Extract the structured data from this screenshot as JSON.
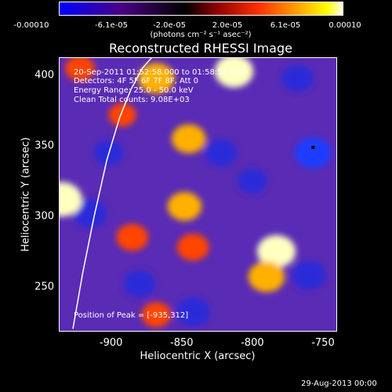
{
  "colorbar": {
    "tick_labels": [
      "-0.00010",
      "-6.1e-05",
      "-2.0e-05",
      "2.0e-05",
      "6.1e-05",
      "0.00010"
    ],
    "units_label": "(photons cm⁻² s⁻¹ asec⁻²)",
    "range": [
      -0.0001,
      0.0001
    ],
    "colors": [
      "#0000ff",
      "#4b0082",
      "#000000",
      "#8b0000",
      "#ff0000",
      "#ffa500",
      "#ffff00",
      "#ffffff"
    ]
  },
  "annotations": {
    "time_range": "20-Sep-2011 01:52:58.000 to 01:58:58.000",
    "detectors": "Detectors: 4F 5F 6F 7F 8F, Att 0",
    "energy": "Energy Range: 25.0 - 50.0 keV",
    "clean": "Clean     Total counts: 9.08E+03",
    "peak": "Position of Peak = [-935,312]"
  },
  "footer": {
    "date_stamp": "29-Aug-2013 00:00"
  },
  "chart_data": {
    "type": "heatmap",
    "title": "Reconstructed RHESSI Image",
    "xlabel": "Heliocentric X (arcsec)",
    "ylabel": "Heliocentric Y (arcsec)",
    "xlim": [
      -937,
      -740
    ],
    "ylim": [
      218,
      413
    ],
    "x_ticks": [
      -900,
      -850,
      -800,
      -750
    ],
    "y_ticks": [
      250,
      300,
      350,
      400
    ],
    "x_tick_labels": [
      "-900",
      "-850",
      "-800",
      "-750"
    ],
    "y_tick_labels": [
      "250",
      "300",
      "350",
      "400"
    ],
    "peak_position": [
      -935,
      312
    ],
    "limb_curve": {
      "x": [
        -927,
        -920,
        -912,
        -903,
        -894,
        -886,
        -878,
        -871
      ],
      "y": [
        220,
        260,
        300,
        340,
        370,
        390,
        405,
        413
      ]
    },
    "bright_sources": [
      {
        "x": -935,
        "y": 312,
        "value": 0.0001
      },
      {
        "x": -868,
        "y": 398,
        "value": 8e-05
      },
      {
        "x": -813,
        "y": 403,
        "value": 9e-05
      },
      {
        "x": -845,
        "y": 355,
        "value": 7e-05
      },
      {
        "x": -783,
        "y": 275,
        "value": 9e-05
      },
      {
        "x": -790,
        "y": 257,
        "value": 8e-05
      },
      {
        "x": -885,
        "y": 285,
        "value": 6e-05
      },
      {
        "x": -842,
        "y": 278,
        "value": 6e-05
      },
      {
        "x": -922,
        "y": 405,
        "value": 5e-05
      },
      {
        "x": -892,
        "y": 372,
        "value": 4e-05
      },
      {
        "x": -848,
        "y": 307,
        "value": 7e-05
      },
      {
        "x": -868,
        "y": 230,
        "value": 5e-05
      }
    ],
    "dark_sources": [
      {
        "x": -915,
        "y": 302,
        "value": -7e-05
      },
      {
        "x": -757,
        "y": 345,
        "value": -8e-05
      },
      {
        "x": -768,
        "y": 398,
        "value": -6e-05
      },
      {
        "x": -822,
        "y": 345,
        "value": -6e-05
      },
      {
        "x": -842,
        "y": 232,
        "value": -7e-05
      },
      {
        "x": -902,
        "y": 345,
        "value": -5e-05
      },
      {
        "x": -880,
        "y": 252,
        "value": -6e-05
      },
      {
        "x": -760,
        "y": 258,
        "value": -7e-05
      },
      {
        "x": -800,
        "y": 325,
        "value": -5e-05
      }
    ]
  }
}
